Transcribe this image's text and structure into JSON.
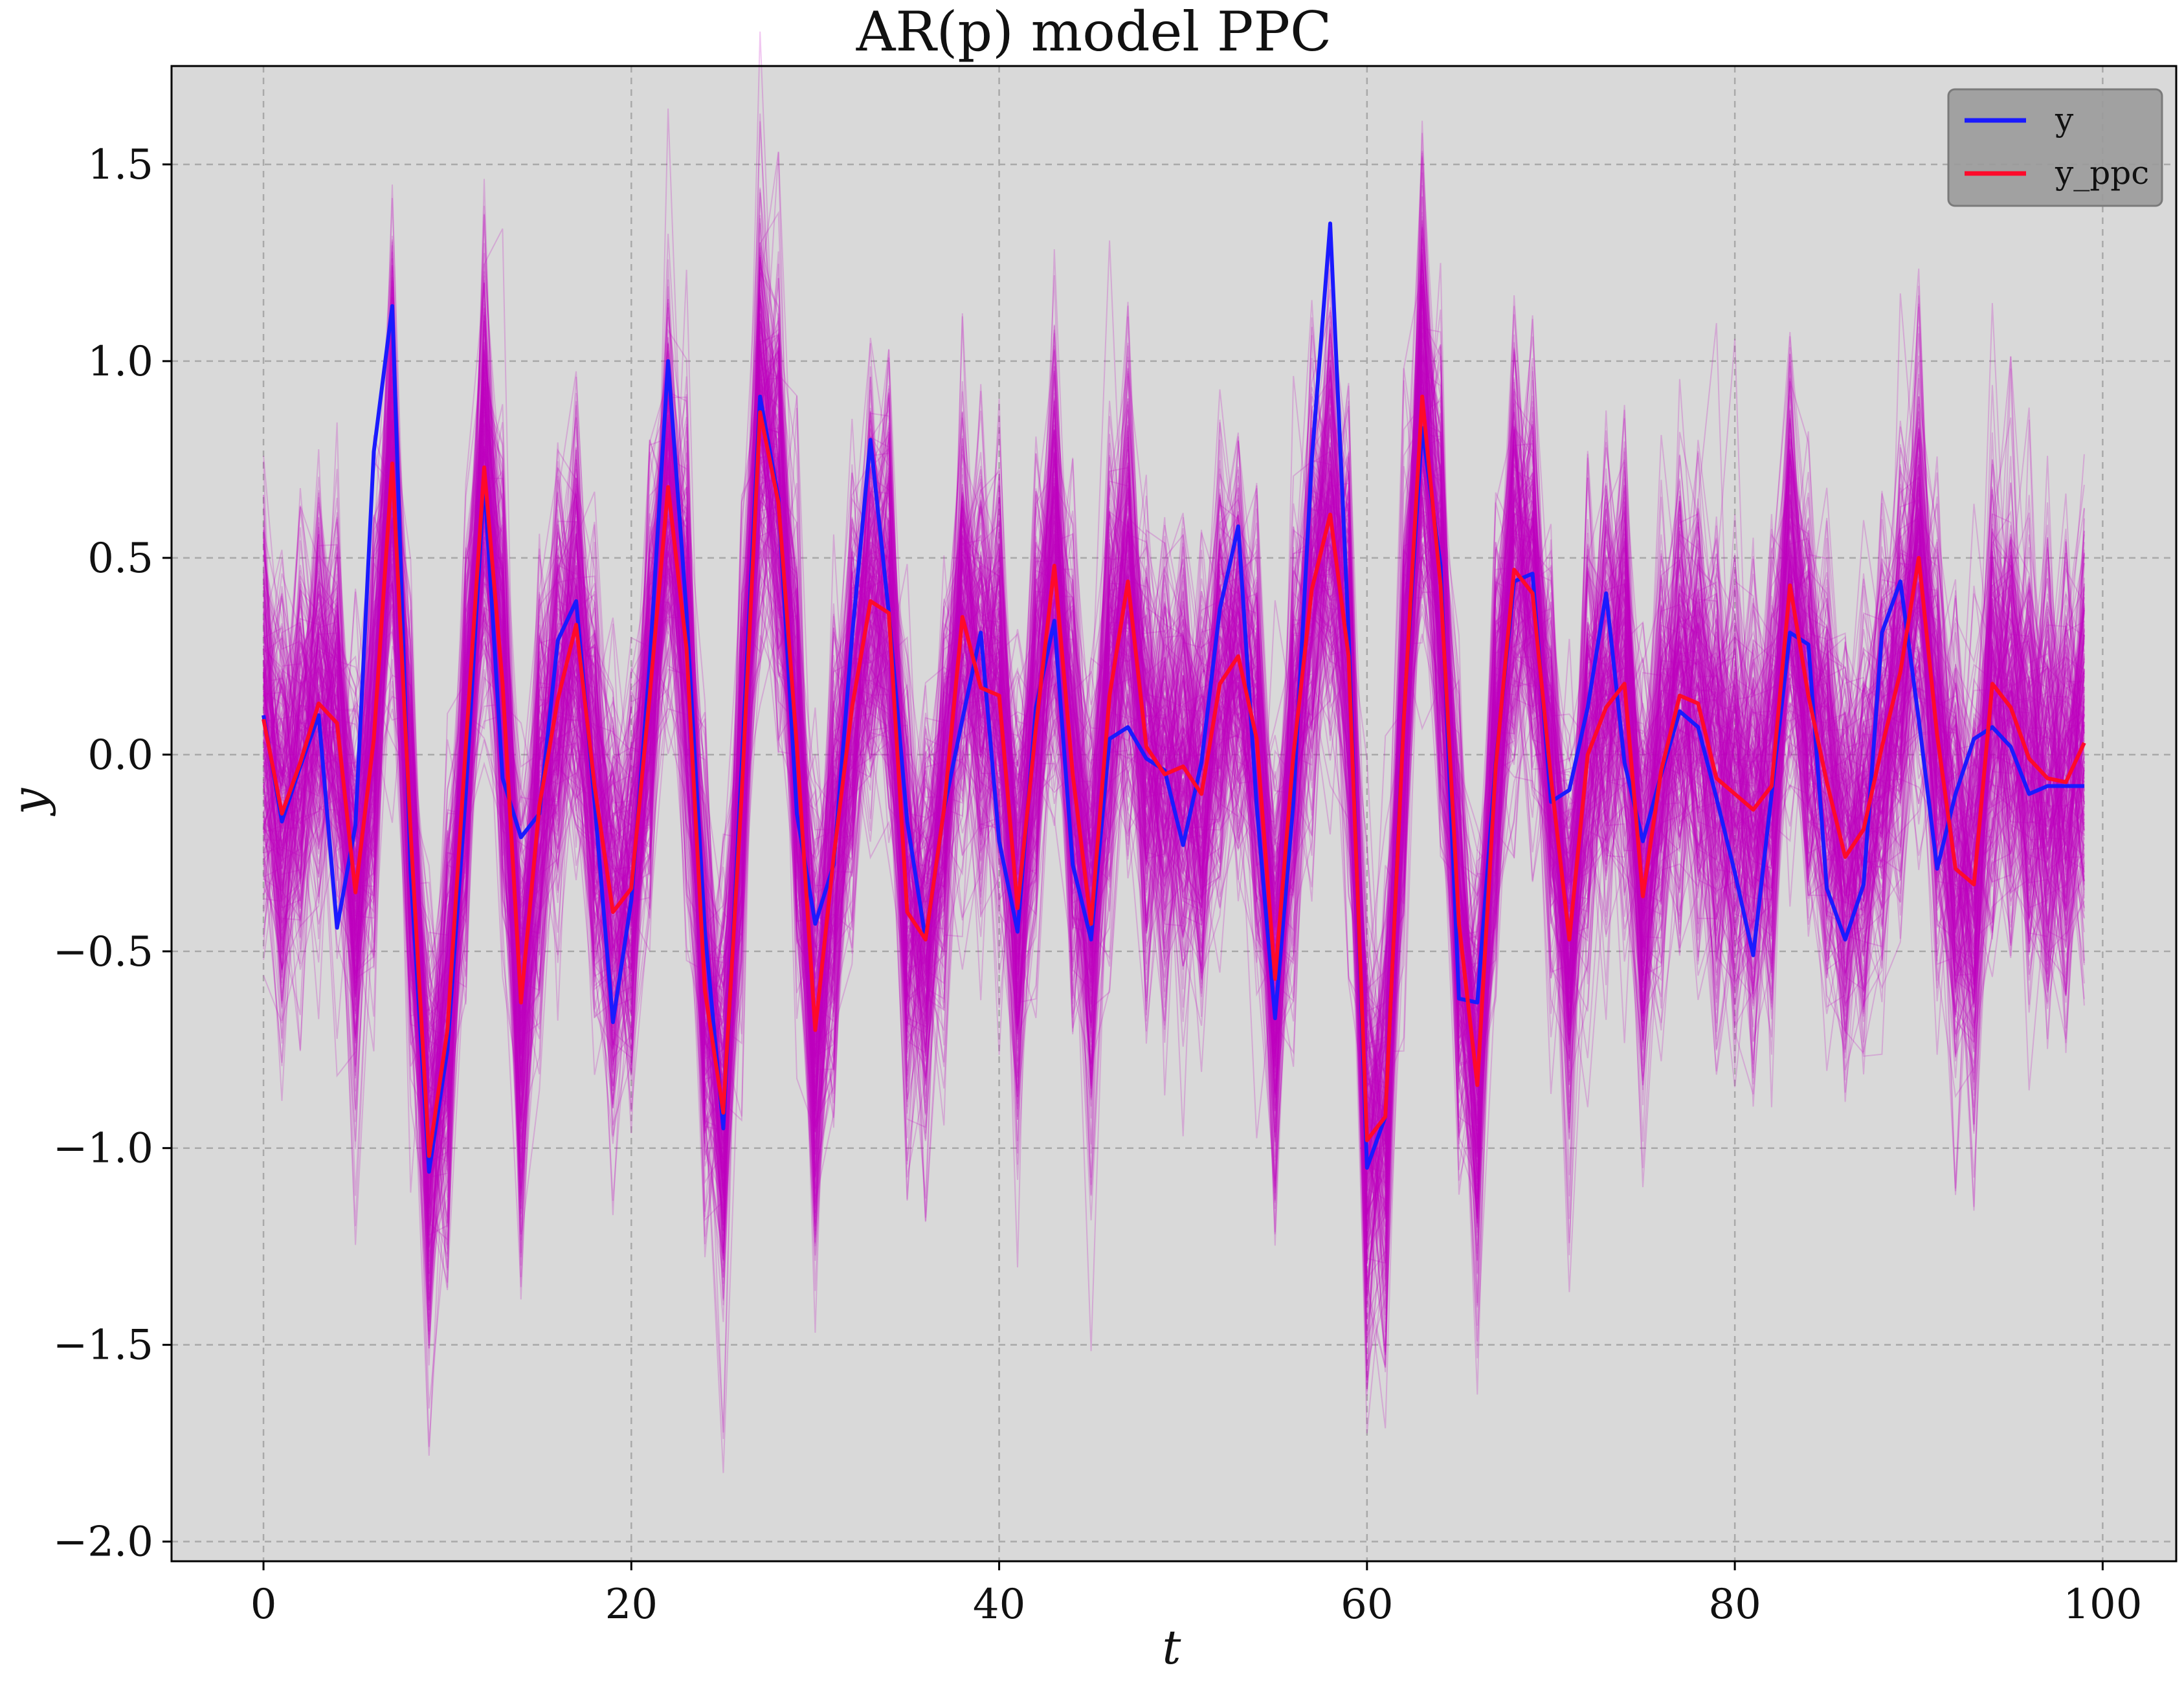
{
  "chart_data": {
    "type": "line",
    "title": "AR(p) model PPC",
    "xlabel": "t",
    "ylabel": "y",
    "xlim": [
      -5,
      104
    ],
    "ylim": [
      -2.05,
      1.75
    ],
    "x_ticks": [
      0,
      20,
      40,
      60,
      80,
      100
    ],
    "x_tick_labels": [
      "0",
      "20",
      "40",
      "60",
      "80",
      "100"
    ],
    "y_ticks": [
      -2.0,
      -1.5,
      -1.0,
      -0.5,
      0.0,
      0.5,
      1.0,
      1.5
    ],
    "y_tick_labels": [
      "−2.0",
      "−1.5",
      "−1.0",
      "−0.5",
      "0.0",
      "0.5",
      "1.0",
      "1.5"
    ],
    "grid": true,
    "legend_position": "top-right",
    "colors": {
      "background": "#d9d9d9",
      "y": "#1a1aff",
      "y_ppc": "#ff0a2a",
      "ppc_samples": "#c000c0",
      "grid": "#a9a9a9",
      "legend_bg": "#9a9a9a"
    },
    "series": [
      {
        "name": "y",
        "x": [
          0,
          1,
          2,
          3,
          4,
          5,
          6,
          7,
          8,
          9,
          10,
          11,
          12,
          13,
          14,
          15,
          16,
          17,
          18,
          19,
          20,
          21,
          22,
          23,
          24,
          25,
          26,
          27,
          28,
          29,
          30,
          31,
          32,
          33,
          34,
          35,
          36,
          37,
          38,
          39,
          40,
          41,
          42,
          43,
          44,
          45,
          46,
          47,
          48,
          49,
          50,
          51,
          52,
          53,
          54,
          55,
          56,
          57,
          58,
          59,
          60,
          61,
          62,
          63,
          64,
          65,
          66,
          67,
          68,
          69,
          70,
          71,
          72,
          73,
          74,
          75,
          76,
          77,
          78,
          79,
          80,
          81,
          82,
          83,
          84,
          85,
          86,
          87,
          88,
          89,
          90,
          91,
          92,
          93,
          94,
          95,
          96,
          97,
          98,
          99
        ],
        "values": [
          0.1,
          -0.17,
          -0.03,
          0.1,
          -0.44,
          -0.18,
          0.77,
          1.14,
          -0.3,
          -1.06,
          -0.75,
          -0.1,
          0.7,
          -0.06,
          -0.21,
          -0.15,
          0.29,
          0.39,
          -0.12,
          -0.68,
          -0.37,
          0.23,
          1.0,
          0.36,
          -0.45,
          -0.95,
          -0.03,
          0.91,
          0.65,
          -0.15,
          -0.43,
          -0.28,
          0.3,
          0.8,
          0.36,
          -0.17,
          -0.47,
          -0.14,
          0.09,
          0.31,
          -0.22,
          -0.45,
          0.12,
          0.34,
          -0.28,
          -0.47,
          0.04,
          0.07,
          -0.01,
          -0.04,
          -0.23,
          -0.02,
          0.37,
          0.58,
          -0.13,
          -0.67,
          -0.12,
          0.75,
          1.35,
          0.31,
          -1.05,
          -0.92,
          0.1,
          0.83,
          0.48,
          -0.62,
          -0.63,
          -0.02,
          0.44,
          0.46,
          -0.12,
          -0.09,
          0.12,
          0.41,
          -0.02,
          -0.22,
          -0.05,
          0.11,
          0.07,
          -0.11,
          -0.3,
          -0.51,
          -0.1,
          0.31,
          0.28,
          -0.34,
          -0.47,
          -0.33,
          0.31,
          0.44,
          0.09,
          -0.29,
          -0.1,
          0.04,
          0.07,
          0.02,
          -0.1,
          -0.08,
          -0.08,
          -0.08
        ]
      },
      {
        "name": "y_ppc",
        "x": [
          0,
          1,
          2,
          3,
          4,
          5,
          6,
          7,
          8,
          9,
          10,
          11,
          12,
          13,
          14,
          15,
          16,
          17,
          18,
          19,
          20,
          21,
          22,
          23,
          24,
          25,
          26,
          27,
          28,
          29,
          30,
          31,
          32,
          33,
          34,
          35,
          36,
          37,
          38,
          39,
          40,
          41,
          42,
          43,
          44,
          45,
          46,
          47,
          48,
          49,
          50,
          51,
          52,
          53,
          54,
          55,
          56,
          57,
          58,
          59,
          60,
          61,
          62,
          63,
          64,
          65,
          66,
          67,
          68,
          69,
          70,
          71,
          72,
          73,
          74,
          75,
          76,
          77,
          78,
          79,
          80,
          81,
          82,
          83,
          84,
          85,
          86,
          87,
          88,
          89,
          90,
          91,
          92,
          93,
          94,
          95,
          96,
          97,
          98,
          99
        ],
        "values": [
          0.09,
          -0.15,
          -0.02,
          0.13,
          0.08,
          -0.35,
          0.04,
          0.74,
          -0.2,
          -1.02,
          -0.7,
          0.02,
          0.73,
          0.18,
          -0.63,
          -0.13,
          0.14,
          0.33,
          -0.08,
          -0.4,
          -0.34,
          0.15,
          0.68,
          0.27,
          -0.6,
          -0.91,
          -0.1,
          0.87,
          0.64,
          0.02,
          -0.7,
          -0.26,
          0.12,
          0.39,
          0.36,
          -0.4,
          -0.47,
          -0.14,
          0.35,
          0.17,
          0.15,
          -0.39,
          0.07,
          0.48,
          -0.05,
          -0.43,
          0.15,
          0.44,
          0.02,
          -0.05,
          -0.03,
          -0.1,
          0.18,
          0.25,
          0.04,
          -0.57,
          0.0,
          0.42,
          0.61,
          0.25,
          -0.98,
          -0.92,
          0.09,
          0.91,
          0.43,
          -0.43,
          -0.84,
          -0.03,
          0.47,
          0.41,
          -0.06,
          -0.47,
          0.0,
          0.12,
          0.18,
          -0.36,
          -0.04,
          0.15,
          0.13,
          -0.06,
          -0.1,
          -0.14,
          -0.08,
          0.43,
          0.15,
          -0.07,
          -0.26,
          -0.19,
          0.02,
          0.21,
          0.5,
          0.05,
          -0.29,
          -0.33,
          0.18,
          0.12,
          -0.01,
          -0.06,
          -0.07,
          0.03
        ]
      }
    ],
    "legend": [
      {
        "label": "y",
        "color": "#1a1aff"
      },
      {
        "label": "y_ppc",
        "color": "#ff0a2a"
      }
    ]
  }
}
